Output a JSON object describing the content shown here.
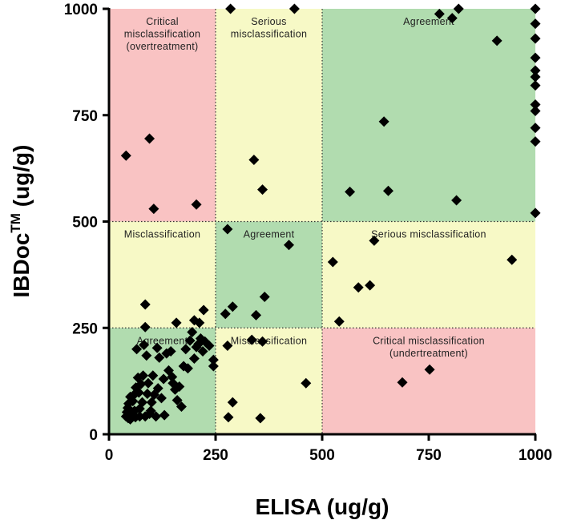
{
  "chart_data": {
    "type": "scatter",
    "xlabel": "ELISA (ug/g)",
    "ylabel_main": "IBDoc",
    "ylabel_sup": "TM",
    "ylabel_unit": " (ug/g)",
    "xlim": [
      0,
      1000
    ],
    "ylim": [
      0,
      1000
    ],
    "xticks": [
      "0",
      "250",
      "500",
      "750",
      "1000"
    ],
    "yticks": [
      "0",
      "250",
      "500",
      "750",
      "1000"
    ],
    "grid": false,
    "zones": [
      {
        "x": [
          0,
          250
        ],
        "y": [
          500,
          1000
        ],
        "color": "#f9c3c3",
        "lines": [
          "Critical",
          "misclassification",
          "(overtreatment)"
        ]
      },
      {
        "x": [
          250,
          500
        ],
        "y": [
          500,
          1000
        ],
        "color": "#f7f9c6",
        "lines": [
          "Serious",
          "misclassification"
        ]
      },
      {
        "x": [
          500,
          1000
        ],
        "y": [
          500,
          1000
        ],
        "color": "#b1dcaf",
        "lines": [
          "Agreement"
        ]
      },
      {
        "x": [
          0,
          250
        ],
        "y": [
          250,
          500
        ],
        "color": "#f7f9c6",
        "lines": [
          "Misclassification"
        ]
      },
      {
        "x": [
          250,
          500
        ],
        "y": [
          250,
          500
        ],
        "color": "#b1dcaf",
        "lines": [
          "Agreement"
        ]
      },
      {
        "x": [
          500,
          1000
        ],
        "y": [
          250,
          500
        ],
        "color": "#f7f9c6",
        "lines": [
          "Serious misclassification"
        ]
      },
      {
        "x": [
          0,
          250
        ],
        "y": [
          0,
          250
        ],
        "color": "#b1dcaf",
        "lines": [
          "Agreement"
        ]
      },
      {
        "x": [
          250,
          500
        ],
        "y": [
          0,
          250
        ],
        "color": "#f7f9c6",
        "lines": [
          "Misclassification"
        ]
      },
      {
        "x": [
          500,
          1000
        ],
        "y": [
          0,
          250
        ],
        "color": "#f9c3c3",
        "lines": [
          "Critical misclassification",
          "(undertreatment)"
        ]
      }
    ],
    "points": [
      [
        40,
        655
      ],
      [
        95,
        695
      ],
      [
        105,
        530
      ],
      [
        205,
        540
      ],
      [
        285,
        1000
      ],
      [
        435,
        1000
      ],
      [
        340,
        645
      ],
      [
        360,
        575
      ],
      [
        565,
        570
      ],
      [
        645,
        735
      ],
      [
        655,
        572
      ],
      [
        775,
        988
      ],
      [
        805,
        978
      ],
      [
        820,
        1000
      ],
      [
        910,
        925
      ],
      [
        815,
        550
      ],
      [
        1000,
        1000
      ],
      [
        1000,
        965
      ],
      [
        1000,
        930
      ],
      [
        1000,
        885
      ],
      [
        1000,
        855
      ],
      [
        1000,
        840
      ],
      [
        1000,
        820
      ],
      [
        1000,
        775
      ],
      [
        1000,
        760
      ],
      [
        1000,
        720
      ],
      [
        1000,
        688
      ],
      [
        1000,
        520
      ],
      [
        278,
        482
      ],
      [
        422,
        445
      ],
      [
        273,
        283
      ],
      [
        290,
        300
      ],
      [
        345,
        280
      ],
      [
        365,
        323
      ],
      [
        525,
        405
      ],
      [
        540,
        265
      ],
      [
        585,
        345
      ],
      [
        612,
        350
      ],
      [
        622,
        455
      ],
      [
        945,
        410
      ],
      [
        85,
        305
      ],
      [
        85,
        252
      ],
      [
        158,
        262
      ],
      [
        200,
        268
      ],
      [
        222,
        292
      ],
      [
        212,
        262
      ],
      [
        235,
        208
      ],
      [
        245,
        175
      ],
      [
        245,
        160
      ],
      [
        40,
        42
      ],
      [
        42,
        52
      ],
      [
        44,
        62
      ],
      [
        46,
        72
      ],
      [
        50,
        88
      ],
      [
        53,
        45
      ],
      [
        56,
        78
      ],
      [
        58,
        92
      ],
      [
        60,
        55
      ],
      [
        63,
        110
      ],
      [
        65,
        200
      ],
      [
        68,
        133
      ],
      [
        70,
        98
      ],
      [
        72,
        60
      ],
      [
        75,
        118
      ],
      [
        78,
        75
      ],
      [
        80,
        138
      ],
      [
        82,
        210
      ],
      [
        85,
        42
      ],
      [
        88,
        185
      ],
      [
        90,
        95
      ],
      [
        92,
        120
      ],
      [
        95,
        48
      ],
      [
        98,
        55
      ],
      [
        100,
        75
      ],
      [
        103,
        138
      ],
      [
        106,
        93
      ],
      [
        110,
        42
      ],
      [
        113,
        203
      ],
      [
        115,
        108
      ],
      [
        118,
        180
      ],
      [
        123,
        85
      ],
      [
        128,
        130
      ],
      [
        130,
        45
      ],
      [
        135,
        190
      ],
      [
        140,
        150
      ],
      [
        145,
        195
      ],
      [
        148,
        135
      ],
      [
        150,
        120
      ],
      [
        155,
        105
      ],
      [
        160,
        80
      ],
      [
        165,
        112
      ],
      [
        170,
        65
      ],
      [
        175,
        160
      ],
      [
        180,
        200
      ],
      [
        185,
        155
      ],
      [
        190,
        220
      ],
      [
        195,
        240
      ],
      [
        200,
        178
      ],
      [
        205,
        205
      ],
      [
        210,
        212
      ],
      [
        215,
        225
      ],
      [
        220,
        195
      ],
      [
        225,
        218
      ],
      [
        45,
        38
      ],
      [
        50,
        35
      ],
      [
        62,
        40
      ],
      [
        72,
        42
      ],
      [
        278,
        208
      ],
      [
        290,
        75
      ],
      [
        280,
        40
      ],
      [
        335,
        222
      ],
      [
        360,
        218
      ],
      [
        355,
        38
      ],
      [
        462,
        120
      ],
      [
        688,
        122
      ],
      [
        752,
        152
      ]
    ]
  }
}
